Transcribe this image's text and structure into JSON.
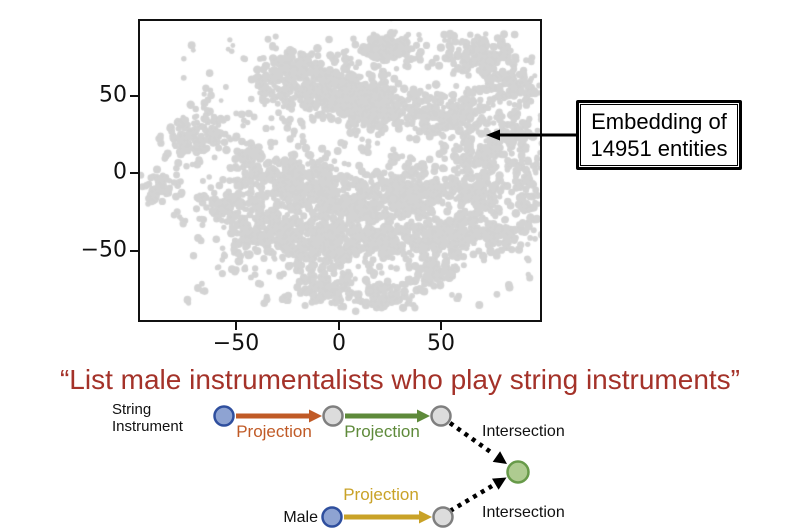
{
  "chart_data": {
    "type": "scatter",
    "title": "",
    "xlabel": "",
    "ylabel": "",
    "xlim": [
      -97,
      98
    ],
    "ylim": [
      -95,
      98
    ],
    "x_tick_labels": [
      "−50",
      "0",
      "50"
    ],
    "x_tick_values": [
      -50,
      0,
      50
    ],
    "y_tick_labels": [
      "50",
      "0",
      "−50"
    ],
    "y_tick_values": [
      50,
      0,
      -50
    ],
    "grid": false,
    "legend": "none",
    "point_color": "#d3d3d3",
    "description": "t-SNE style 2D embedding cloud of 14951 entities drawn as dense light-gray clusters",
    "seed": 42,
    "clusters": [
      {
        "x": 25,
        "y": 80,
        "sx": 7,
        "sy": 5,
        "n": 160
      },
      {
        "x": 68,
        "y": 76,
        "sx": 9,
        "sy": 6,
        "n": 150
      },
      {
        "x": 84,
        "y": 55,
        "sx": 7,
        "sy": 7,
        "n": 90
      },
      {
        "x": -8,
        "y": 55,
        "sx": 15,
        "sy": 9,
        "n": 380
      },
      {
        "x": -22,
        "y": 68,
        "sx": 6,
        "sy": 5,
        "n": 90
      },
      {
        "x": 18,
        "y": 40,
        "sx": 10,
        "sy": 8,
        "n": 200
      },
      {
        "x": 52,
        "y": 38,
        "sx": 12,
        "sy": 9,
        "n": 240
      },
      {
        "x": 85,
        "y": 28,
        "sx": 6,
        "sy": 7,
        "n": 90
      },
      {
        "x": -70,
        "y": 24,
        "sx": 8,
        "sy": 8,
        "n": 120
      },
      {
        "x": -45,
        "y": 8,
        "sx": 5,
        "sy": 5,
        "n": 55
      },
      {
        "x": -88,
        "y": -10,
        "sx": 4,
        "sy": 5,
        "n": 55
      },
      {
        "x": -20,
        "y": -6,
        "sx": 12,
        "sy": 9,
        "n": 260
      },
      {
        "x": 5,
        "y": -20,
        "sx": 14,
        "sy": 10,
        "n": 320
      },
      {
        "x": 35,
        "y": -12,
        "sx": 10,
        "sy": 8,
        "n": 210
      },
      {
        "x": 65,
        "y": -14,
        "sx": 9,
        "sy": 9,
        "n": 160
      },
      {
        "x": 92,
        "y": -8,
        "sx": 4,
        "sy": 16,
        "n": 70
      },
      {
        "x": -55,
        "y": -22,
        "sx": 6,
        "sy": 6,
        "n": 75
      },
      {
        "x": -35,
        "y": -38,
        "sx": 10,
        "sy": 9,
        "n": 230
      },
      {
        "x": -8,
        "y": -48,
        "sx": 12,
        "sy": 9,
        "n": 260
      },
      {
        "x": 25,
        "y": -42,
        "sx": 9,
        "sy": 8,
        "n": 180
      },
      {
        "x": 55,
        "y": -42,
        "sx": 9,
        "sy": 8,
        "n": 160
      },
      {
        "x": 80,
        "y": -38,
        "sx": 6,
        "sy": 6,
        "n": 75
      },
      {
        "x": -5,
        "y": -75,
        "sx": 7,
        "sy": 5,
        "n": 95
      },
      {
        "x": 22,
        "y": -78,
        "sx": 7,
        "sy": 5,
        "n": 85
      },
      {
        "x": 46,
        "y": -66,
        "sx": 6,
        "sy": 5,
        "n": 65
      },
      {
        "x": 70,
        "y": 12,
        "sx": 8,
        "sy": 7,
        "n": 130
      }
    ],
    "noise": {
      "n": 260,
      "x_range": [
        -80,
        95
      ],
      "y_range": [
        -85,
        88
      ]
    }
  },
  "annotation": {
    "line1": "Embedding of",
    "line2": "14951 entities"
  },
  "quote": {
    "text": "“List male instrumentalists who play string instruments”",
    "color": "#a43229"
  },
  "query_graph": {
    "anchor1_line1": "String",
    "anchor1_line2": "Instrument",
    "anchor2_label": "Male",
    "edges": [
      {
        "label": "Projection"
      },
      {
        "label": "Projection"
      },
      {
        "label": "Projection"
      }
    ],
    "intersection_top": "Intersection",
    "intersection_bottom": "Intersection",
    "colors": {
      "edge1": "#c05a26",
      "edge2": "#5e8a3a",
      "edge3": "#c9a227",
      "anchor_fill": "#8ea3d2",
      "anchor_stroke": "#2f4f9e",
      "var_fill": "#dcdcdc",
      "var_stroke": "#7f7f7f",
      "target_fill": "#aecb90",
      "target_stroke": "#679a49",
      "black": "#000000"
    }
  }
}
